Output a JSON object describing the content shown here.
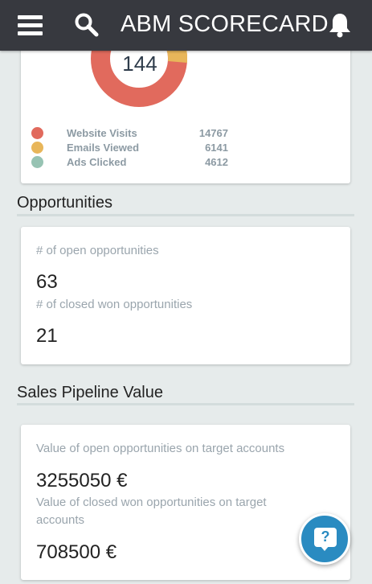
{
  "header": {
    "title": "ABM SCORECARD",
    "menu_icon": "menu-icon",
    "search_icon": "search-icon",
    "bell_icon": "bell-icon",
    "background": "#37393f"
  },
  "engagement": {
    "total": "144",
    "legend": [
      {
        "label": "Website Visits",
        "value": "14767",
        "color": "#e16a5d"
      },
      {
        "label": "Emails Viewed",
        "value": "6141",
        "color": "#e8b65a"
      },
      {
        "label": "Ads Clicked",
        "value": "4612",
        "color": "#97c3b3"
      }
    ]
  },
  "opportunities": {
    "title": "Opportunities",
    "open_label": "# of open opportunities",
    "open_value": "63",
    "closed_label": "# of closed won opportunities",
    "closed_value": "21"
  },
  "pipeline": {
    "title": "Sales Pipeline Value",
    "open_label": "Value of open opportunities on target accounts",
    "open_value": "3255050 €",
    "closed_label": "Value of closed won opportunities on target accounts",
    "closed_value": "708500 €"
  },
  "help": {
    "symbol": "?",
    "icon": "help-chat-icon",
    "color": "#2a8bc1"
  }
}
